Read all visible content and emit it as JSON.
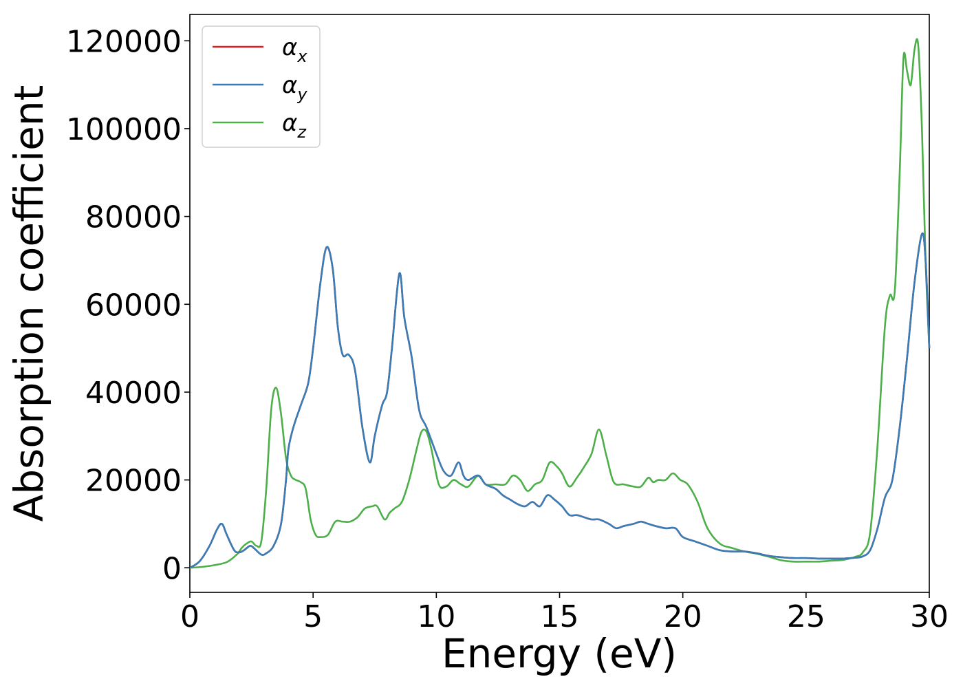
{
  "chart_data": {
    "type": "line",
    "title": "",
    "xlabel": "Energy (eV)",
    "ylabel": "Absorption coefficient",
    "xlim": [
      0,
      30
    ],
    "ylim": [
      -5600,
      126000
    ],
    "xticks": [
      0,
      5,
      10,
      15,
      20,
      25,
      30
    ],
    "yticks": [
      0,
      20000,
      40000,
      60000,
      80000,
      100000,
      120000
    ],
    "xtick_labels": [
      "0",
      "5",
      "10",
      "15",
      "20",
      "25",
      "30"
    ],
    "ytick_labels": [
      "0",
      "20000",
      "40000",
      "60000",
      "80000",
      "100000",
      "120000"
    ],
    "grid": false,
    "legend_position": "top-left",
    "legend": [
      {
        "base": "α",
        "sub": "x",
        "color": "#e41a1c"
      },
      {
        "base": "α",
        "sub": "y",
        "color": "#377eb8"
      },
      {
        "base": "α",
        "sub": "z",
        "color": "#4daf4a"
      }
    ],
    "series": [
      {
        "name": "αx",
        "color": "#e41a1c",
        "x": [
          0,
          0.4,
          0.8,
          1.1,
          1.3,
          1.5,
          1.8,
          2.0,
          2.2,
          2.45,
          2.65,
          2.9,
          3.1,
          3.4,
          3.7,
          3.9,
          4.0,
          4.2,
          4.5,
          4.8,
          5.0,
          5.3,
          5.55,
          5.8,
          6.0,
          6.2,
          6.45,
          6.7,
          7.0,
          7.3,
          7.5,
          7.8,
          8.0,
          8.2,
          8.5,
          8.7,
          9.0,
          9.3,
          9.6,
          10.0,
          10.3,
          10.6,
          10.9,
          11.1,
          11.3,
          11.7,
          12.0,
          12.4,
          12.7,
          13.0,
          13.3,
          13.6,
          13.9,
          14.2,
          14.5,
          14.8,
          15.1,
          15.4,
          15.7,
          16.0,
          16.3,
          16.6,
          17.0,
          17.3,
          17.6,
          18.0,
          18.3,
          18.6,
          18.9,
          19.3,
          19.7,
          20.0,
          20.5,
          21.0,
          21.5,
          22.0,
          22.5,
          23.0,
          23.5,
          24.0,
          24.5,
          25.0,
          25.5,
          26.0,
          26.5,
          27.0,
          27.3,
          27.6,
          27.9,
          28.2,
          28.5,
          28.8,
          29.1,
          29.4,
          29.7,
          29.85,
          30.0
        ],
        "y": [
          0,
          1500,
          5000,
          8700,
          10000,
          7500,
          4000,
          3500,
          4000,
          5000,
          4200,
          3000,
          3300,
          5000,
          10000,
          20000,
          27000,
          32000,
          37000,
          42000,
          50000,
          65000,
          73000,
          68000,
          55000,
          48500,
          48500,
          45000,
          32000,
          24000,
          30000,
          37000,
          40000,
          50000,
          67000,
          57000,
          48000,
          36000,
          32000,
          26000,
          22000,
          21000,
          24000,
          21000,
          20000,
          21000,
          19000,
          18000,
          16500,
          15500,
          14500,
          14000,
          15000,
          14000,
          16500,
          15500,
          14000,
          12000,
          12000,
          11500,
          11000,
          11000,
          10000,
          9000,
          9500,
          10000,
          10500,
          10000,
          9500,
          9000,
          9000,
          7000,
          6000,
          5000,
          4000,
          3700,
          3700,
          3300,
          2700,
          2400,
          2200,
          2200,
          2100,
          2100,
          2100,
          2300,
          2600,
          4000,
          9000,
          16000,
          20000,
          32000,
          48000,
          65000,
          76000,
          70000,
          50000
        ]
      },
      {
        "name": "αy",
        "color": "#377eb8",
        "x": [
          0,
          0.4,
          0.8,
          1.1,
          1.3,
          1.5,
          1.8,
          2.0,
          2.2,
          2.45,
          2.65,
          2.9,
          3.1,
          3.4,
          3.7,
          3.9,
          4.0,
          4.2,
          4.5,
          4.8,
          5.0,
          5.3,
          5.55,
          5.8,
          6.0,
          6.2,
          6.45,
          6.7,
          7.0,
          7.3,
          7.5,
          7.8,
          8.0,
          8.2,
          8.5,
          8.7,
          9.0,
          9.3,
          9.6,
          10.0,
          10.3,
          10.6,
          10.9,
          11.1,
          11.3,
          11.7,
          12.0,
          12.4,
          12.7,
          13.0,
          13.3,
          13.6,
          13.9,
          14.2,
          14.5,
          14.8,
          15.1,
          15.4,
          15.7,
          16.0,
          16.3,
          16.6,
          17.0,
          17.3,
          17.6,
          18.0,
          18.3,
          18.6,
          18.9,
          19.3,
          19.7,
          20.0,
          20.5,
          21.0,
          21.5,
          22.0,
          22.5,
          23.0,
          23.5,
          24.0,
          24.5,
          25.0,
          25.5,
          26.0,
          26.5,
          27.0,
          27.3,
          27.6,
          27.9,
          28.2,
          28.5,
          28.8,
          29.1,
          29.4,
          29.7,
          29.85,
          30.0
        ],
        "y": [
          0,
          1500,
          5000,
          8700,
          10000,
          7500,
          4000,
          3500,
          4000,
          5000,
          4200,
          3000,
          3300,
          5000,
          10000,
          20000,
          27000,
          32000,
          37000,
          42000,
          50000,
          65000,
          73000,
          68000,
          55000,
          48500,
          48500,
          45000,
          32000,
          24000,
          30000,
          37000,
          40000,
          50000,
          67000,
          57000,
          48000,
          36000,
          32000,
          26000,
          22000,
          21000,
          24000,
          21000,
          20000,
          21000,
          19000,
          18000,
          16500,
          15500,
          14500,
          14000,
          15000,
          14000,
          16500,
          15500,
          14000,
          12000,
          12000,
          11500,
          11000,
          11000,
          10000,
          9000,
          9500,
          10000,
          10500,
          10000,
          9500,
          9000,
          9000,
          7000,
          6000,
          5000,
          4000,
          3700,
          3700,
          3300,
          2700,
          2400,
          2200,
          2200,
          2100,
          2100,
          2100,
          2300,
          2600,
          4000,
          9000,
          16000,
          20000,
          32000,
          48000,
          65000,
          76000,
          70000,
          50000
        ]
      },
      {
        "name": "αz",
        "color": "#4daf4a",
        "x": [
          0,
          0.5,
          1.0,
          1.5,
          1.9,
          2.1,
          2.3,
          2.5,
          2.7,
          2.9,
          3.1,
          3.3,
          3.5,
          3.7,
          3.9,
          4.1,
          4.3,
          4.5,
          4.7,
          4.9,
          5.1,
          5.3,
          5.6,
          5.9,
          6.2,
          6.5,
          6.8,
          7.1,
          7.4,
          7.6,
          7.9,
          8.1,
          8.3,
          8.6,
          8.9,
          9.2,
          9.4,
          9.6,
          9.8,
          10.1,
          10.4,
          10.7,
          11.0,
          11.3,
          11.7,
          12.0,
          12.4,
          12.8,
          13.1,
          13.4,
          13.7,
          14.0,
          14.3,
          14.6,
          14.9,
          15.1,
          15.4,
          15.7,
          16.0,
          16.3,
          16.6,
          16.9,
          17.2,
          17.6,
          18.0,
          18.3,
          18.6,
          18.8,
          19.0,
          19.3,
          19.6,
          19.9,
          20.2,
          20.6,
          21.0,
          21.5,
          22.0,
          22.5,
          23.0,
          23.5,
          24.0,
          24.5,
          25.0,
          25.5,
          26.0,
          26.5,
          27.0,
          27.3,
          27.6,
          27.9,
          28.2,
          28.4,
          28.6,
          28.8,
          28.95,
          29.1,
          29.25,
          29.4,
          29.55,
          29.7,
          29.85,
          30.0
        ],
        "y": [
          0,
          200,
          600,
          1300,
          3000,
          4500,
          5500,
          6000,
          5000,
          6000,
          18000,
          36000,
          41000,
          35000,
          25000,
          21000,
          20000,
          19500,
          18000,
          11000,
          7500,
          7000,
          7500,
          10500,
          10500,
          10500,
          11500,
          13500,
          14000,
          14000,
          11000,
          12500,
          13500,
          15000,
          20000,
          27000,
          31000,
          31000,
          27000,
          19000,
          18500,
          20000,
          19000,
          18500,
          21000,
          19000,
          19000,
          19000,
          21000,
          20000,
          17500,
          19000,
          20000,
          24000,
          23000,
          21500,
          18500,
          20500,
          23000,
          26000,
          31500,
          25500,
          19500,
          19000,
          18500,
          18500,
          20500,
          19500,
          20000,
          20000,
          21500,
          20000,
          19000,
          15000,
          9000,
          5500,
          4500,
          3700,
          3200,
          2500,
          1700,
          1400,
          1400,
          1400,
          1600,
          1800,
          2500,
          3500,
          8000,
          28000,
          55000,
          62000,
          63000,
          90000,
          116000,
          113000,
          110000,
          118000,
          119000,
          100000,
          70000,
          50000
        ]
      }
    ]
  }
}
